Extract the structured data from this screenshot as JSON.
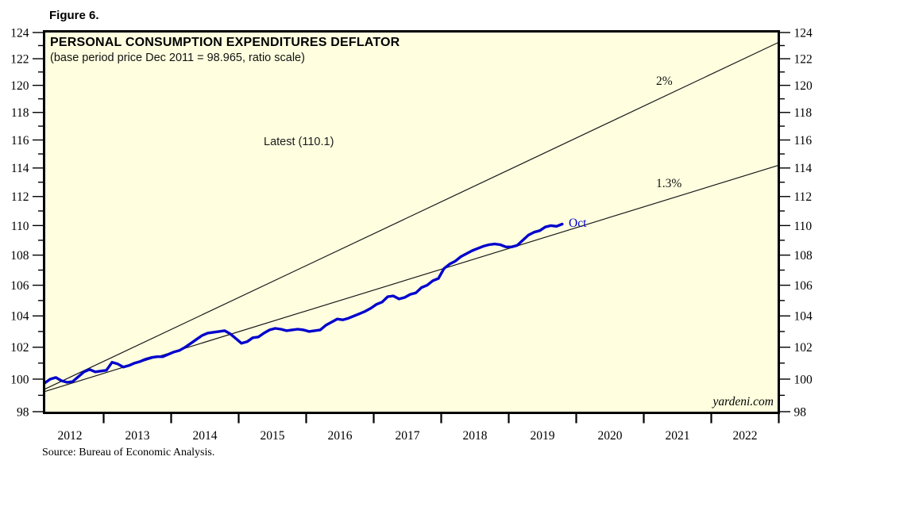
{
  "figure_label": "Figure 6.",
  "chart": {
    "title": "PERSONAL CONSUMPTION EXPENDITURES DEFLATOR",
    "subtitle": "(base period price Dec 2011 = 98.965, ratio scale)",
    "watermark": "yardeni.com",
    "annotations": {
      "latest": "Latest (110.1)",
      "trend_upper": "2%",
      "trend_lower": "1.3%",
      "last_point": "Oct"
    }
  },
  "source_note": "Source: Bureau of Economic Analysis.",
  "colors": {
    "plot_bg": "#FFFFE0",
    "series": "#0000CD",
    "trend_line": "#1a1a1a",
    "axis": "#000000"
  },
  "chart_data": {
    "type": "line",
    "title": "PERSONAL CONSUMPTION EXPENDITURES DEFLATOR",
    "subtitle": "(base period price Dec 2011 = 98.965, ratio scale)",
    "y_axis": {
      "scale": "ratio-log",
      "min": 98,
      "max": 124,
      "major_tick_step": 2,
      "minor_tick_step": 1,
      "tick_labels": [
        "98",
        "100",
        "102",
        "104",
        "106",
        "108",
        "110",
        "112",
        "114",
        "116",
        "118",
        "120",
        "122",
        "124"
      ],
      "labels_on_both_sides": true
    },
    "x_axis": {
      "year_labels": [
        "2012",
        "2013",
        "2014",
        "2015",
        "2016",
        "2017",
        "2018",
        "2019",
        "2020",
        "2021",
        "2022"
      ],
      "start_year": 2012,
      "end_year": 2023,
      "boundary_ticks": [
        2013,
        2014,
        2015,
        2016,
        2017,
        2018,
        2019,
        2020,
        2021,
        2022,
        2023
      ]
    },
    "trend_lines": [
      {
        "label": "2%",
        "annual_rate": 0.02,
        "base_value": 98.965,
        "base_time": 2011.917
      },
      {
        "label": "1.3%",
        "annual_rate": 0.013,
        "base_value": 98.965,
        "base_time": 2011.917
      }
    ],
    "series": [
      {
        "name": "PCE deflator (Dec 2011 = 98.965)",
        "frequency": "monthly",
        "start": {
          "year": 2012,
          "month": 1
        },
        "end": {
          "year": 2019,
          "month": 10
        },
        "latest_value": 110.1,
        "latest_label": "Oct",
        "values": [
          99.35,
          99.75,
          100.0,
          100.1,
          99.9,
          99.8,
          99.85,
          100.15,
          100.45,
          100.6,
          100.45,
          100.5,
          100.55,
          101.05,
          100.95,
          100.75,
          100.85,
          101.0,
          101.1,
          101.25,
          101.35,
          101.4,
          101.4,
          101.55,
          101.7,
          101.8,
          102.0,
          102.25,
          102.5,
          102.75,
          102.9,
          102.95,
          103.0,
          103.05,
          102.85,
          102.55,
          102.25,
          102.35,
          102.6,
          102.65,
          102.9,
          103.1,
          103.2,
          103.15,
          103.05,
          103.1,
          103.15,
          103.1,
          103.0,
          103.05,
          103.1,
          103.4,
          103.6,
          103.8,
          103.75,
          103.85,
          104.0,
          104.15,
          104.3,
          104.5,
          104.75,
          104.9,
          105.25,
          105.3,
          105.1,
          105.2,
          105.4,
          105.5,
          105.85,
          106.0,
          106.3,
          106.45,
          107.1,
          107.4,
          107.6,
          107.9,
          108.1,
          108.3,
          108.45,
          108.6,
          108.7,
          108.75,
          108.7,
          108.55,
          108.55,
          108.65,
          109.0,
          109.35,
          109.55,
          109.65,
          109.9,
          110.0,
          109.95,
          110.1
        ]
      }
    ]
  }
}
